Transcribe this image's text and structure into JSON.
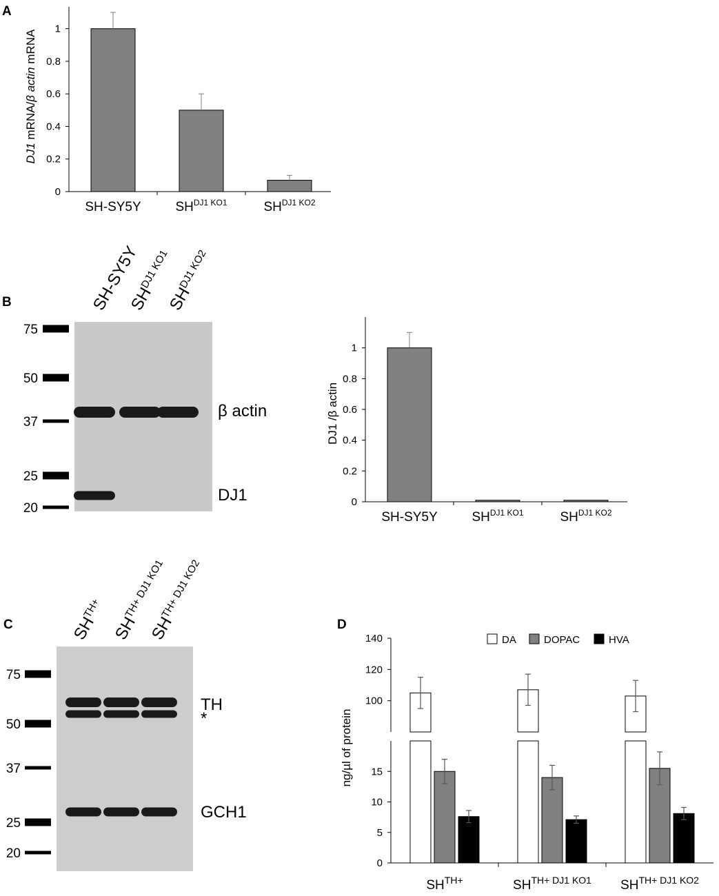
{
  "panels": {
    "A": "A",
    "B": "B",
    "C": "C",
    "D": "D"
  },
  "chart_data": [
    {
      "panel": "A",
      "type": "bar",
      "categories": [
        {
          "base": "SH-SY5Y",
          "sup": ""
        },
        {
          "base": "SH",
          "sup": "DJ1 KO1"
        },
        {
          "base": "SH",
          "sup": "DJ1 KO2"
        }
      ],
      "values": [
        1.0,
        0.5,
        0.07
      ],
      "errors": [
        0.1,
        0.1,
        0.03
      ],
      "ylabel": {
        "italic1": "DJ1",
        "mid": " mRNA/",
        "italic2": "β actin",
        "end": " mRNA"
      },
      "ylim": [
        0,
        1.1
      ],
      "yticks": [
        "0",
        "0.2",
        "0.4",
        "0.6",
        "0.8",
        "1"
      ],
      "yticks_values": [
        0,
        0.2,
        0.4,
        0.6,
        0.8,
        1
      ],
      "bar_color": "#808080",
      "grid": false
    },
    {
      "panel": "B",
      "type": "bar",
      "categories": [
        {
          "base": "SH-SY5Y",
          "sup": ""
        },
        {
          "base": "SH",
          "sup": "DJ1 KO1"
        },
        {
          "base": "SH",
          "sup": "DJ1 KO2"
        }
      ],
      "values": [
        1.0,
        0.01,
        0.01
      ],
      "errors": [
        0.1,
        0.0,
        0.0
      ],
      "ylabel": "DJ1 /β actin",
      "ylim": [
        0,
        1.2
      ],
      "yticks": [
        "0",
        "0.2",
        "0.4",
        "0.6",
        "0.8",
        "1"
      ],
      "yticks_values": [
        0,
        0.2,
        0.4,
        0.6,
        0.8,
        1
      ],
      "bar_color": "#808080",
      "grid": false
    },
    {
      "panel": "D",
      "type": "bar",
      "categories": [
        {
          "base": "SH",
          "sup": "TH+"
        },
        {
          "base": "SH",
          "sup": "TH+ DJ1 KO1"
        },
        {
          "base": "SH",
          "sup": "TH+ DJ1 KO2"
        }
      ],
      "series": [
        {
          "name": "DA",
          "values": [
            105,
            107,
            103
          ],
          "errors": [
            10,
            10,
            10
          ],
          "color": "#ffffff"
        },
        {
          "name": "DOPAC",
          "values": [
            15,
            14,
            15.5
          ],
          "errors": [
            2,
            2,
            2.7
          ],
          "color": "#808080"
        },
        {
          "name": "HVA",
          "values": [
            7.6,
            7.1,
            8.1
          ],
          "errors": [
            1,
            0.6,
            1
          ],
          "color": "#000000"
        }
      ],
      "ylabel": "ng/µl of protein",
      "broken_axis": true,
      "ylim_lower": [
        0,
        20
      ],
      "ylim_upper": [
        80,
        140
      ],
      "yticks_lower": [
        "0",
        "5",
        "10",
        "15"
      ],
      "yticks_lower_values": [
        0,
        5,
        10,
        15
      ],
      "yticks_upper": [
        "100",
        "120",
        "140"
      ],
      "yticks_upper_values": [
        100,
        120,
        140
      ],
      "legend_position": "top-right",
      "grid": false
    }
  ],
  "blots": {
    "B": {
      "lanes": [
        {
          "base": "SH-SY5Y",
          "sup": ""
        },
        {
          "base": "SH",
          "sup": "DJ1 KO1"
        },
        {
          "base": "SH",
          "sup": "DJ1 KO2"
        }
      ],
      "markers": [
        "75",
        "50",
        "37",
        "25",
        "20"
      ],
      "bands": [
        "β actin",
        "DJ1"
      ]
    },
    "C": {
      "lanes": [
        {
          "base": "SH",
          "sup": "TH+"
        },
        {
          "base": "SH",
          "sup": "TH+ DJ1 KO1"
        },
        {
          "base": "SH",
          "sup": "TH+ DJ1 KO2"
        }
      ],
      "markers": [
        "75",
        "50",
        "37",
        "25",
        "20"
      ],
      "bands": [
        "TH",
        "*",
        "GCH1"
      ]
    }
  }
}
